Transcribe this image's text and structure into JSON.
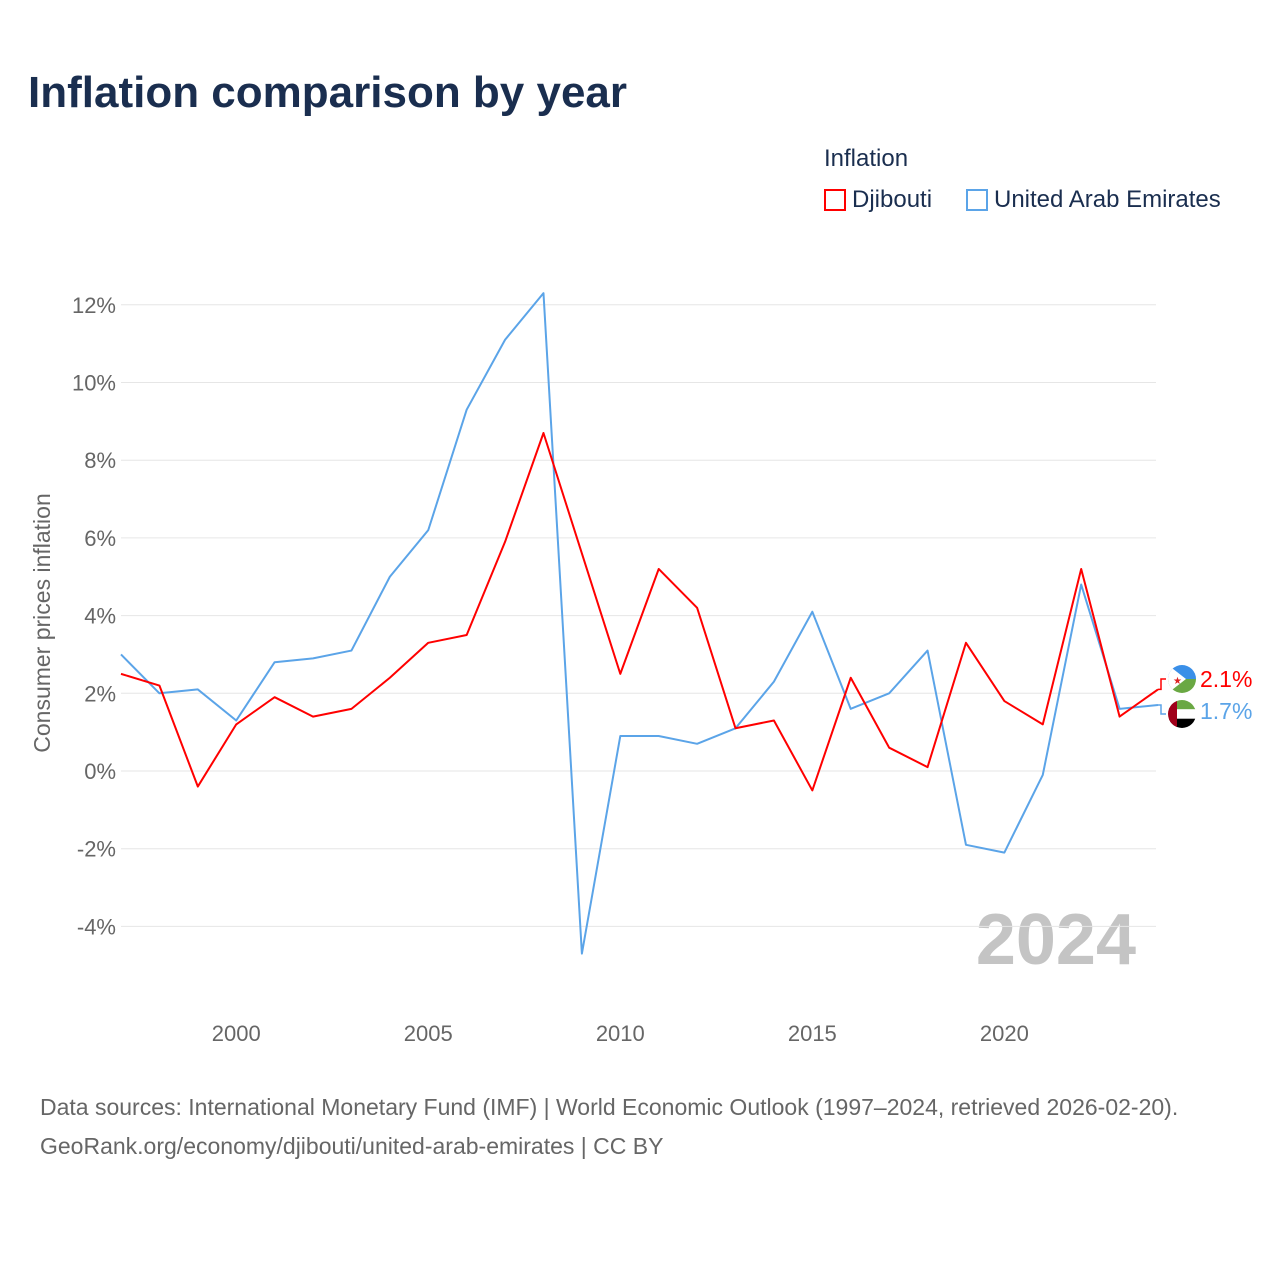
{
  "chart_data": {
    "type": "line",
    "title": "Inflation comparison by year",
    "legend_title": "Inflation",
    "legend_position": "top-right",
    "ylabel": "Consumer prices inflation",
    "xlabel": "",
    "ylim": [
      -5,
      12.5
    ],
    "xlim": [
      1997,
      2024
    ],
    "yticks": [
      -4,
      -2,
      0,
      2,
      4,
      6,
      8,
      10,
      12
    ],
    "ytick_labels": [
      "-4%",
      "-2%",
      "0%",
      "2%",
      "4%",
      "6%",
      "8%",
      "10%",
      "12%"
    ],
    "xticks": [
      2000,
      2005,
      2010,
      2015,
      2020
    ],
    "xtick_labels": [
      "2000",
      "2005",
      "2010",
      "2015",
      "2020"
    ],
    "grid": true,
    "year_watermark": "2024",
    "x": [
      1997,
      1998,
      1999,
      2000,
      2001,
      2002,
      2003,
      2004,
      2005,
      2006,
      2007,
      2008,
      2009,
      2010,
      2011,
      2012,
      2013,
      2014,
      2015,
      2016,
      2017,
      2018,
      2019,
      2020,
      2021,
      2022,
      2023,
      2024
    ],
    "series": [
      {
        "name": "Djibouti",
        "color": "#ff0000",
        "end_label": "2.1%",
        "values": [
          2.5,
          2.2,
          -0.4,
          1.2,
          1.9,
          1.4,
          1.6,
          2.4,
          3.3,
          3.5,
          5.9,
          8.7,
          5.6,
          2.5,
          5.2,
          4.2,
          1.1,
          1.3,
          -0.5,
          2.4,
          0.6,
          0.1,
          3.3,
          1.8,
          1.2,
          5.2,
          1.4,
          2.1
        ]
      },
      {
        "name": "United Arab Emirates",
        "color": "#5ba4e8",
        "end_label": "1.7%",
        "values": [
          3.0,
          2.0,
          2.1,
          1.3,
          2.8,
          2.9,
          3.1,
          5.0,
          6.2,
          9.3,
          11.1,
          12.3,
          -4.7,
          0.9,
          0.9,
          0.7,
          1.1,
          2.3,
          4.1,
          1.6,
          2.0,
          3.1,
          -1.9,
          -2.1,
          -0.1,
          4.8,
          1.6,
          1.7
        ]
      }
    ]
  },
  "footer": {
    "sources": "Data sources: International Monetary Fund (IMF) | World Economic Outlook (1997–2024, retrieved 2026-02-20).",
    "link": "GeoRank.org/economy/djibouti/united-arab-emirates | CC BY"
  }
}
